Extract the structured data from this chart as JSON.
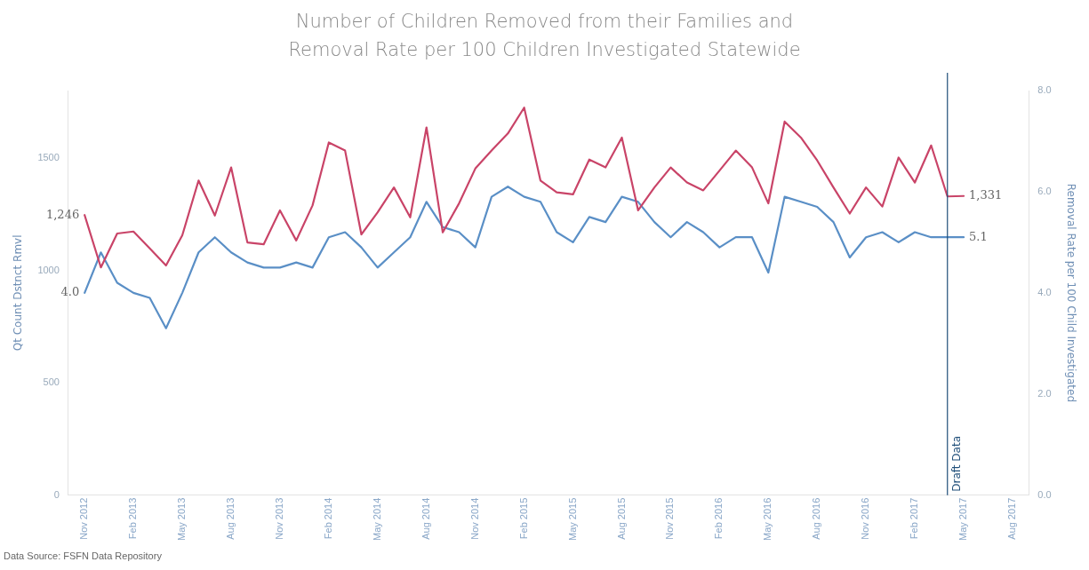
{
  "chart_data": {
    "type": "line",
    "title": "Number of Children Removed from their Families and Removal Rate per 100 Children Investigated Statewide",
    "ylabel": "Qt Count Dstnct Rmvl",
    "y2label": "Removal Rate per 100 Child Investigated",
    "x": [
      "2012-11",
      "2012-12",
      "2013-01",
      "2013-02",
      "2013-03",
      "2013-04",
      "2013-05",
      "2013-06",
      "2013-07",
      "2013-08",
      "2013-09",
      "2013-10",
      "2013-11",
      "2013-12",
      "2014-01",
      "2014-02",
      "2014-03",
      "2014-04",
      "2014-05",
      "2014-06",
      "2014-07",
      "2014-08",
      "2014-09",
      "2014-10",
      "2014-11",
      "2014-12",
      "2015-01",
      "2015-02",
      "2015-03",
      "2015-04",
      "2015-05",
      "2015-06",
      "2015-07",
      "2015-08",
      "2015-09",
      "2015-10",
      "2015-11",
      "2015-12",
      "2016-01",
      "2016-02",
      "2016-03",
      "2016-04",
      "2016-05",
      "2016-06",
      "2016-07",
      "2016-08",
      "2016-09",
      "2016-10",
      "2016-11",
      "2016-12",
      "2017-01",
      "2017-02",
      "2017-03",
      "2017-04",
      "2017-05"
    ],
    "series": [
      {
        "color": "#c94468",
        "values": [
          1246,
          1013,
          1164,
          1173,
          1098,
          1022,
          1156,
          1400,
          1244,
          1458,
          1124,
          1116,
          1267,
          1133,
          1289,
          1569,
          1533,
          1160,
          1258,
          1369,
          1236,
          1636,
          1169,
          1298,
          1453,
          1533,
          1609,
          1724,
          1400,
          1347,
          1338,
          1493,
          1458,
          1591,
          1267,
          1369,
          1458,
          1391,
          1356,
          1444,
          1533,
          1458,
          1298,
          1662,
          1591,
          1489,
          1369,
          1253,
          1369,
          1284,
          1502,
          1391,
          1556,
          1329,
          1331
        ],
        "value_labels": [
          "1,246",
          null,
          null,
          null,
          null,
          null,
          null,
          null,
          null,
          null,
          null,
          null,
          null,
          null,
          null,
          null,
          null,
          null,
          null,
          null,
          null,
          null,
          null,
          null,
          null,
          null,
          null,
          null,
          null,
          null,
          null,
          null,
          null,
          null,
          null,
          null,
          null,
          null,
          null,
          null,
          null,
          null,
          null,
          null,
          null,
          null,
          null,
          null,
          null,
          null,
          null,
          null,
          null,
          null,
          "1,331"
        ]
      },
      {
        "color": "#5a8fc6",
        "axis": "y2",
        "values": [
          4.0,
          4.8,
          4.2,
          4.0,
          3.9,
          3.3,
          4.0,
          4.8,
          5.1,
          4.8,
          4.6,
          4.5,
          4.5,
          4.6,
          4.5,
          5.1,
          5.2,
          4.9,
          4.5,
          4.8,
          5.1,
          5.8,
          5.3,
          5.2,
          4.9,
          5.9,
          6.1,
          5.9,
          5.8,
          5.2,
          5.0,
          5.5,
          5.4,
          5.9,
          5.8,
          5.4,
          5.1,
          5.4,
          5.2,
          4.9,
          5.1,
          5.1,
          4.4,
          5.9,
          5.8,
          5.7,
          5.4,
          4.7,
          5.1,
          5.2,
          5.0,
          5.2,
          5.1,
          5.1,
          5.1
        ],
        "value_labels": [
          "4.0",
          null,
          null,
          null,
          null,
          null,
          null,
          null,
          null,
          null,
          null,
          null,
          null,
          null,
          null,
          null,
          null,
          null,
          null,
          null,
          null,
          null,
          null,
          null,
          null,
          null,
          null,
          null,
          null,
          null,
          null,
          null,
          null,
          null,
          null,
          null,
          null,
          null,
          null,
          null,
          null,
          null,
          null,
          null,
          null,
          null,
          null,
          null,
          null,
          null,
          null,
          null,
          null,
          null,
          "5.1"
        ]
      }
    ],
    "xlim": [
      "2012-10",
      "2017-09"
    ],
    "xticks": [
      {
        "value": "2012-11",
        "label": "Nov 2012"
      },
      {
        "value": "2013-02",
        "label": "Feb 2013"
      },
      {
        "value": "2013-05",
        "label": "May 2013"
      },
      {
        "value": "2013-08",
        "label": "Aug 2013"
      },
      {
        "value": "2013-11",
        "label": "Nov 2013"
      },
      {
        "value": "2014-02",
        "label": "Feb 2014"
      },
      {
        "value": "2014-05",
        "label": "May 2014"
      },
      {
        "value": "2014-08",
        "label": "Aug 2014"
      },
      {
        "value": "2014-11",
        "label": "Nov 2014"
      },
      {
        "value": "2015-02",
        "label": "Feb 2015"
      },
      {
        "value": "2015-05",
        "label": "May 2015"
      },
      {
        "value": "2015-08",
        "label": "Aug 2015"
      },
      {
        "value": "2015-11",
        "label": "Nov 2015"
      },
      {
        "value": "2016-02",
        "label": "Feb 2016"
      },
      {
        "value": "2016-05",
        "label": "May 2016"
      },
      {
        "value": "2016-08",
        "label": "Aug 2016"
      },
      {
        "value": "2016-11",
        "label": "Nov 2016"
      },
      {
        "value": "2017-02",
        "label": "Feb 2017"
      },
      {
        "value": "2017-05",
        "label": "May 2017"
      },
      {
        "value": "2017-08",
        "label": "Aug 2017"
      }
    ],
    "ylim": [
      0,
      1800
    ],
    "yticks": [
      0,
      500,
      1000,
      1500
    ],
    "y2lim": [
      0,
      8
    ],
    "y2ticks": [
      {
        "value": 0,
        "label": "0.0"
      },
      {
        "value": 2,
        "label": "2.0"
      },
      {
        "value": 4,
        "label": "4.0"
      },
      {
        "value": 6,
        "label": "6.0"
      },
      {
        "value": 8,
        "label": "8.0"
      }
    ],
    "ref_lines": [
      {
        "axis": "x",
        "value": "2017-04",
        "label": "Draft Data",
        "color": "#1f4e79"
      }
    ],
    "annotations": [
      "Data Source: FSFN Data Repository"
    ],
    "grid": false,
    "legend": false,
    "marker": "none",
    "line_style": "solid"
  }
}
